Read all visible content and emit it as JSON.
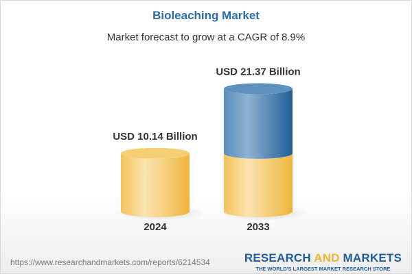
{
  "title": "Bioleaching Market",
  "subtitle": "Market forecast to grow at a CAGR of 8.9%",
  "chart_data": {
    "type": "bar",
    "style": "3d-cylinder",
    "categories": [
      "2024",
      "2033"
    ],
    "values": [
      10.14,
      21.37
    ],
    "data_labels": [
      "USD 10.14 Billion",
      "USD 21.37 Billion"
    ],
    "unit": "USD Billion",
    "colors": {
      "base": "#f2c45a",
      "growth": "#2f6ea6"
    }
  },
  "footer": {
    "url": "https://www.researchandmarkets.com/reports/6214534",
    "logo_part1": "RESEARCH ",
    "logo_part2": "AND",
    "logo_part3": " MARKETS",
    "tagline": "THE WORLD'S LARGEST MARKET RESEARCH STORE"
  }
}
